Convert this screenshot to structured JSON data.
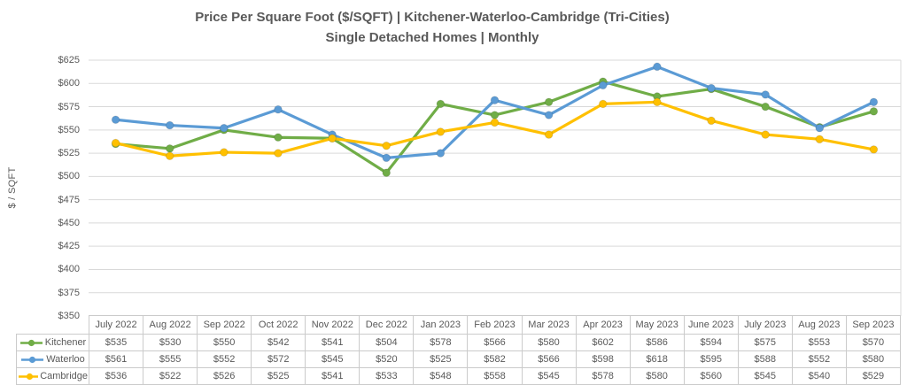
{
  "chart_data": {
    "type": "line",
    "title": "Price Per Square Foot ($/SQFT) | Kitchener-Waterloo-Cambridge (Tri-Cities)",
    "subtitle": "Single Detached Homes | Monthly",
    "ylabel": "$ / SQFT",
    "ylim": [
      350,
      625
    ],
    "ytick_step": 25,
    "y_tick_labels_top_down": [
      "$625",
      "$600",
      "$575",
      "$550",
      "$525",
      "$500",
      "$475",
      "$450",
      "$425",
      "$400",
      "$375",
      "$350"
    ],
    "grid": true,
    "legend_position": "data-table-left",
    "value_prefix": "$",
    "categories": [
      "July 2022",
      "Aug 2022",
      "Sep 2022",
      "Oct 2022",
      "Nov 2022",
      "Dec 2022",
      "Jan 2023",
      "Feb 2023",
      "Mar 2023",
      "Apr 2023",
      "May 2023",
      "June 2023",
      "July 2023",
      "Aug 2023",
      "Sep 2023"
    ],
    "series": [
      {
        "name": "Kitchener",
        "color": "#70AD47",
        "values": [
          535,
          530,
          550,
          542,
          541,
          504,
          578,
          566,
          580,
          602,
          586,
          594,
          575,
          553,
          570
        ]
      },
      {
        "name": "Waterloo",
        "color": "#5B9BD5",
        "values": [
          561,
          555,
          552,
          572,
          545,
          520,
          525,
          582,
          566,
          598,
          618,
          595,
          588,
          552,
          580
        ]
      },
      {
        "name": "Cambridge",
        "color": "#FFC000",
        "values": [
          536,
          522,
          526,
          525,
          541,
          533,
          548,
          558,
          545,
          578,
          580,
          560,
          545,
          540,
          529
        ]
      }
    ]
  },
  "colors": {
    "text": "#595959",
    "grid": "#D9D9D9",
    "table_border": "#CBCBCB",
    "background": "#FFFFFF"
  }
}
